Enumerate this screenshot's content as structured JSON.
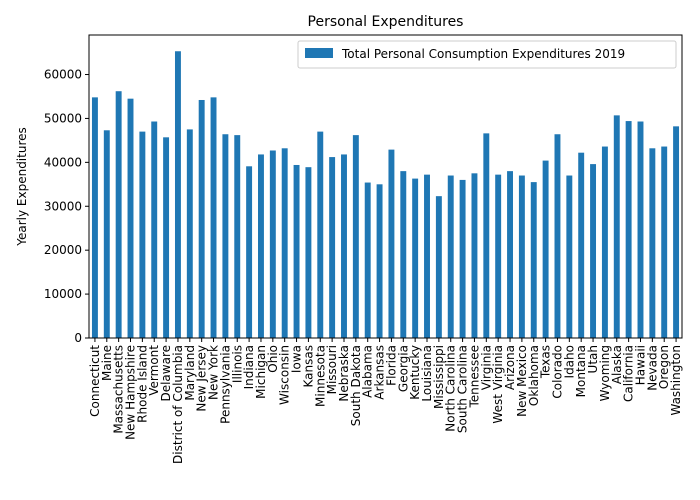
{
  "chart_data": {
    "type": "bar",
    "title": "Personal Expenditures",
    "xlabel": "",
    "ylabel": "Yearly Expenditures",
    "ylim": [
      0,
      69000
    ],
    "yticks": [
      0,
      10000,
      20000,
      30000,
      40000,
      50000,
      60000
    ],
    "grid": false,
    "legend_position": "top-right",
    "bar_color": "#1f77b4",
    "categories": [
      "Connecticut",
      "Maine",
      "Massachusetts",
      "New Hampshire",
      "Rhode Island",
      "Vermont",
      "Delaware",
      "District of Columbia",
      "Maryland",
      "New Jersey",
      "New York",
      "Pennsylvania",
      "Illinois",
      "Indiana",
      "Michigan",
      "Ohio",
      "Wisconsin",
      "Iowa",
      "Kansas",
      "Minnesota",
      "Missouri",
      "Nebraska",
      "South Dakota",
      "Alabama",
      "Arkansas",
      "Florida",
      "Georgia",
      "Kentucky",
      "Louisiana",
      "Mississippi",
      "North Carolina",
      "South Carolina",
      "Tennessee",
      "Virginia",
      "West Virginia",
      "Arizona",
      "New Mexico",
      "Oklahoma",
      "Texas",
      "Colorado",
      "Idaho",
      "Montana",
      "Utah",
      "Wyoming",
      "Alaska",
      "California",
      "Hawaii",
      "Nevada",
      "Oregon",
      "Washington"
    ],
    "series": [
      {
        "name": "Total Personal Consumption Expenditures 2019",
        "values": [
          54800,
          47300,
          56200,
          54500,
          47000,
          49300,
          45700,
          65300,
          47500,
          54200,
          54800,
          46400,
          46200,
          39100,
          41800,
          42700,
          43200,
          39400,
          38900,
          47000,
          41200,
          41800,
          46200,
          35400,
          35000,
          42900,
          38000,
          36300,
          37200,
          32300,
          37000,
          36000,
          37500,
          46600,
          37200,
          38000,
          37000,
          35500,
          40400,
          46400,
          37000,
          42200,
          39600,
          43600,
          50700,
          49400,
          49300,
          43200,
          43600,
          48200
        ]
      }
    ]
  }
}
